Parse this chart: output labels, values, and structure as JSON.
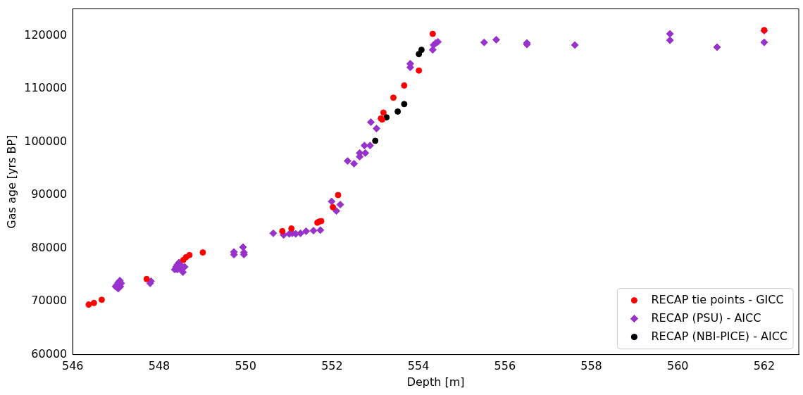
{
  "chart_data": {
    "type": "scatter",
    "xlabel": "Depth [m]",
    "ylabel": "Gas age [yrs BP]",
    "xlim": [
      546,
      562.8
    ],
    "ylim": [
      60000,
      125000
    ],
    "xticks": [
      546,
      548,
      550,
      552,
      554,
      556,
      558,
      560,
      562
    ],
    "yticks": [
      60000,
      70000,
      80000,
      90000,
      100000,
      110000,
      120000
    ],
    "legend": "bottom right",
    "series": [
      {
        "name": "RECAP tie points - GICC",
        "color": "#ff0000",
        "marker": "circle",
        "x": [
          546.37,
          546.49,
          546.67,
          547.71,
          548.56,
          548.62,
          548.7,
          549.01,
          550.85,
          551.06,
          551.66,
          551.7,
          551.75,
          552.02,
          552.14,
          553.13,
          553.16,
          553.19,
          553.42,
          553.67,
          554.01,
          554.33,
          562.0
        ],
        "values": [
          69400,
          69700,
          70300,
          74200,
          77800,
          78300,
          78700,
          79200,
          83200,
          83700,
          84800,
          85000,
          85100,
          87700,
          90000,
          104400,
          104200,
          105500,
          108300,
          110600,
          113400,
          120300,
          121000
        ]
      },
      {
        "name": "RECAP (PSU) - AICC",
        "color": "#9932cc",
        "marker": "diamond",
        "x": [
          546.99,
          547.02,
          547.05,
          547.09,
          547.12,
          547.1,
          547.05,
          547.79,
          547.81,
          548.36,
          548.39,
          548.42,
          548.46,
          548.49,
          548.52,
          548.55,
          548.59,
          548.46,
          548.42,
          549.73,
          549.73,
          549.94,
          549.96,
          549.96,
          550.64,
          550.88,
          551.01,
          551.08,
          551.16,
          551.27,
          551.4,
          551.57,
          551.73,
          551.99,
          552.19,
          552.1,
          552.36,
          552.51,
          552.64,
          552.64,
          552.75,
          552.77,
          552.88,
          552.9,
          553.03,
          553.81,
          553.81,
          554.33,
          554.35,
          554.4,
          554.45,
          555.52,
          555.8,
          556.51,
          556.51,
          557.62,
          559.82,
          559.82,
          560.91,
          562.0,
          562.0
        ],
        "values": [
          72800,
          73100,
          73500,
          73900,
          73400,
          72800,
          72400,
          73400,
          73800,
          76000,
          76500,
          76900,
          77300,
          76900,
          76200,
          75500,
          76500,
          76200,
          76000,
          79300,
          78800,
          80200,
          78800,
          79200,
          82800,
          82500,
          82700,
          82800,
          82700,
          82800,
          83200,
          83300,
          83400,
          88800,
          88200,
          87000,
          96400,
          95900,
          97900,
          97200,
          99300,
          97900,
          99300,
          103700,
          102500,
          114700,
          114000,
          117300,
          118200,
          118600,
          118800,
          118700,
          119200,
          118600,
          118300,
          118200,
          120300,
          119100,
          117800,
          120900,
          118700
        ]
      },
      {
        "name": "RECAP (NBI-PICE) - AICC",
        "color": "#000000",
        "marker": "circle",
        "x": [
          553.0,
          553.26,
          553.52,
          553.67,
          554.01,
          554.07
        ],
        "values": [
          100200,
          104600,
          105700,
          107100,
          116500,
          117300
        ]
      }
    ]
  }
}
